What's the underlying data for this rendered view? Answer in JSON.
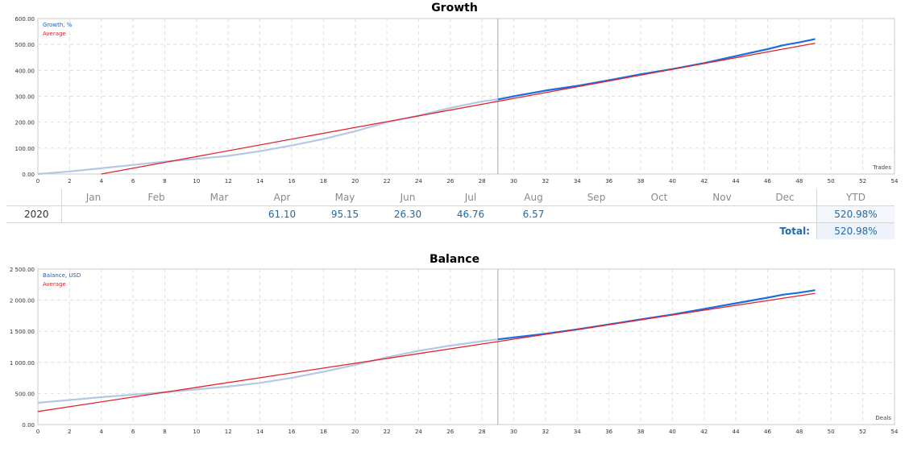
{
  "chart_data": [
    {
      "type": "line",
      "title": "Growth",
      "xlabel": "Trades",
      "ylim": [
        0,
        600
      ],
      "xlim": [
        0,
        54
      ],
      "yticks": [
        "0.00",
        "100.00",
        "200.00",
        "300.00",
        "400.00",
        "500.00",
        "600.00"
      ],
      "xticks": [
        0,
        2,
        4,
        6,
        8,
        10,
        12,
        14,
        16,
        18,
        20,
        22,
        24,
        26,
        28,
        30,
        32,
        34,
        36,
        38,
        40,
        42,
        44,
        46,
        48,
        50,
        52,
        54
      ],
      "vline_x": 29,
      "series": [
        {
          "name": "Growth, %",
          "color_before": "#b4c8e6",
          "color_after": "#1b6ee0",
          "split_x": 29,
          "x": [
            0,
            2,
            4,
            6,
            8,
            10,
            12,
            14,
            16,
            18,
            20,
            22,
            24,
            26,
            28,
            29,
            30,
            32,
            34,
            36,
            38,
            40,
            42,
            44,
            46,
            47,
            48,
            49
          ],
          "y": [
            0,
            10,
            22,
            35,
            48,
            58,
            70,
            88,
            110,
            135,
            165,
            200,
            225,
            255,
            280,
            288,
            300,
            322,
            340,
            362,
            385,
            405,
            428,
            455,
            482,
            497,
            508,
            521
          ]
        },
        {
          "name": "Average",
          "color": "#e3232c",
          "x": [
            4,
            49
          ],
          "y": [
            0,
            505
          ]
        }
      ]
    },
    {
      "type": "line",
      "title": "Balance",
      "xlabel": "Deals",
      "ylim": [
        0,
        2500
      ],
      "xlim": [
        0,
        54
      ],
      "yticks": [
        "0.00",
        "500.00",
        "1 000.00",
        "1 500.00",
        "2 000.00",
        "2 500.00"
      ],
      "xticks": [
        0,
        2,
        4,
        6,
        8,
        10,
        12,
        14,
        16,
        18,
        20,
        22,
        24,
        26,
        28,
        30,
        32,
        34,
        36,
        38,
        40,
        42,
        44,
        46,
        48,
        50,
        52,
        54
      ],
      "vline_x": 29,
      "series": [
        {
          "name": "Balance, USD",
          "color_before": "#b4c8e6",
          "color_after": "#1b6ee0",
          "split_x": 29,
          "x": [
            0,
            2,
            4,
            6,
            8,
            10,
            12,
            14,
            16,
            18,
            20,
            22,
            24,
            26,
            28,
            29,
            30,
            32,
            34,
            36,
            38,
            40,
            42,
            44,
            46,
            47,
            48,
            49
          ],
          "y": [
            350,
            395,
            440,
            480,
            520,
            565,
            610,
            670,
            750,
            850,
            960,
            1080,
            1185,
            1270,
            1340,
            1370,
            1400,
            1460,
            1530,
            1610,
            1690,
            1770,
            1860,
            1950,
            2040,
            2090,
            2120,
            2160
          ]
        },
        {
          "name": "Average",
          "color": "#e3232c",
          "x": [
            0,
            49
          ],
          "y": [
            210,
            2110
          ]
        }
      ]
    }
  ],
  "monthly_table": {
    "months": [
      "Jan",
      "Feb",
      "Mar",
      "Apr",
      "May",
      "Jun",
      "Jul",
      "Aug",
      "Sep",
      "Oct",
      "Nov",
      "Dec"
    ],
    "ytd_label": "YTD",
    "rows": [
      {
        "year": "2020",
        "values": [
          "",
          "",
          "",
          "61.10",
          "95.15",
          "26.30",
          "46.76",
          "6.57",
          "",
          "",
          "",
          ""
        ],
        "ytd": "520.98%"
      }
    ],
    "total_label": "Total:",
    "total_value": "520.98%"
  }
}
